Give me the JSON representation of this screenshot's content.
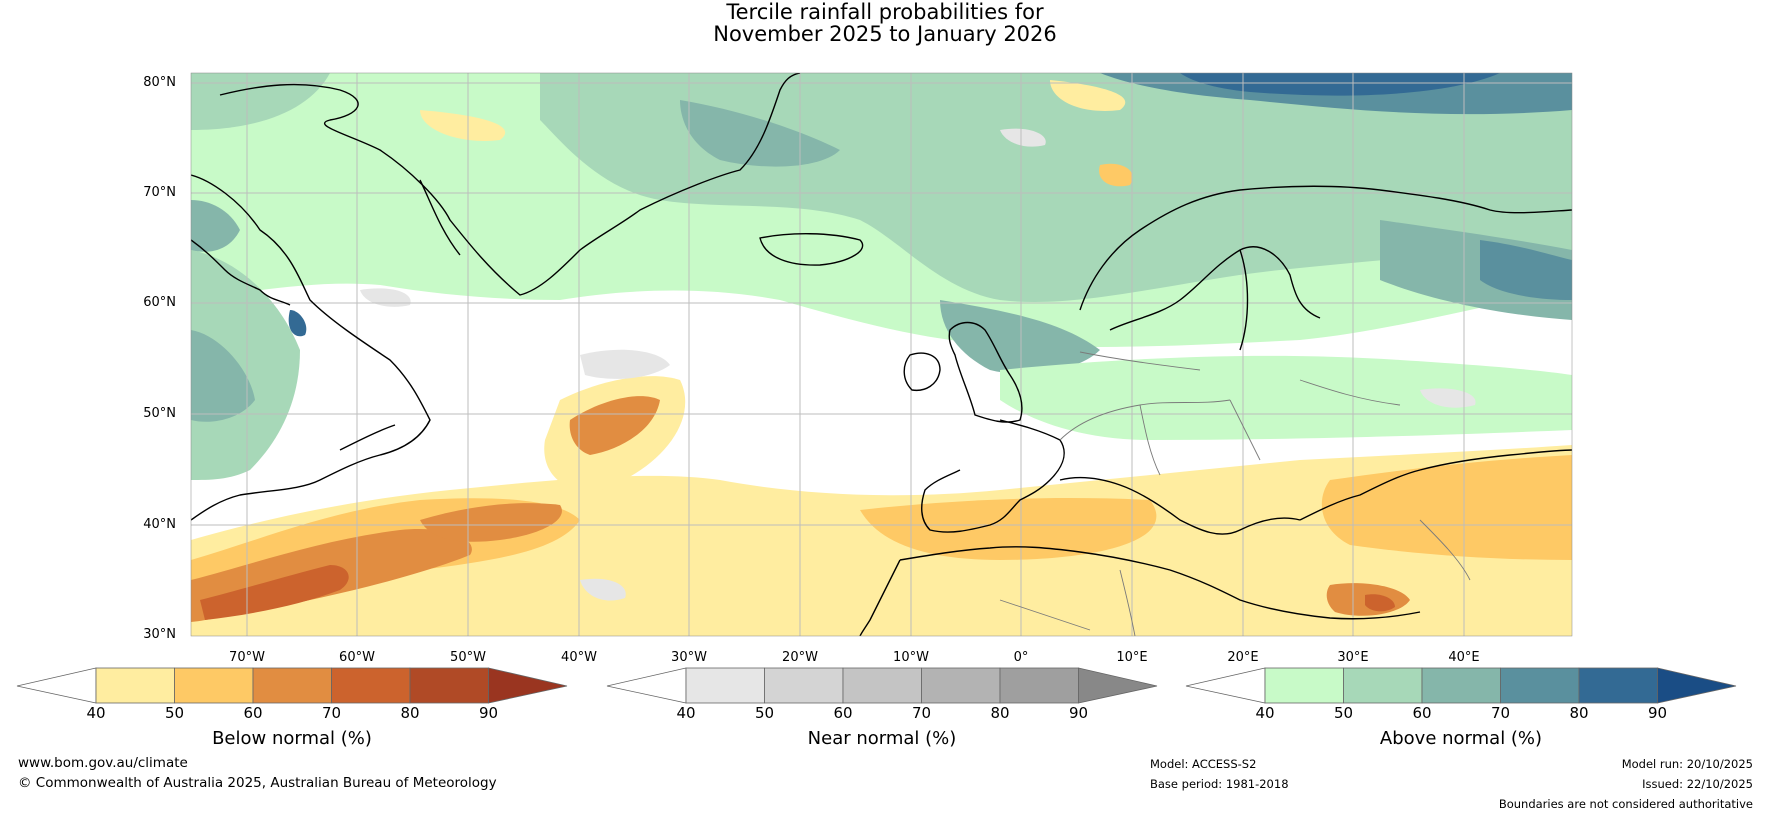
{
  "title": {
    "line1": "Tercile rainfall probabilities for",
    "line2": "November 2025 to January 2026"
  },
  "latitude_labels": [
    "80°N",
    "70°N",
    "60°N",
    "50°N",
    "40°N",
    "30°N"
  ],
  "longitude_labels": [
    "70°W",
    "60°W",
    "50°W",
    "40°W",
    "30°W",
    "20°W",
    "10°W",
    "0°",
    "10°E",
    "20°E",
    "30°E",
    "40°E"
  ],
  "colorbars": [
    {
      "label": "Below normal (%)",
      "ticks": [
        "40",
        "50",
        "60",
        "70",
        "80",
        "90"
      ],
      "colors": [
        "#ffffff",
        "#ffeda0",
        "#fec965",
        "#e18d41",
        "#cc632d",
        "#b04a26",
        "#9a3520"
      ]
    },
    {
      "label": "Near normal (%)",
      "ticks": [
        "40",
        "50",
        "60",
        "70",
        "80",
        "90"
      ],
      "colors": [
        "#ffffff",
        "#e6e6e6",
        "#d4d4d4",
        "#c4c4c4",
        "#b3b3b3",
        "#9f9f9f",
        "#888888"
      ]
    },
    {
      "label": "Above normal (%)",
      "ticks": [
        "40",
        "50",
        "60",
        "70",
        "80",
        "90"
      ],
      "colors": [
        "#ffffff",
        "#c8fac8",
        "#a7d8b8",
        "#85b6aa",
        "#5a909e",
        "#336a94",
        "#1a4d85"
      ]
    }
  ],
  "footer": {
    "website": "www.bom.gov.au/climate",
    "copyright": "© Commonwealth of Australia 2025, Australian Bureau of Meteorology",
    "model": "Model: ACCESS-S2",
    "base_period": "Base period: 1981-2018",
    "model_run": "Model run: 20/10/2025",
    "issued": "Issued: 22/10/2025",
    "disclaimer": "Boundaries are not considered authoritative"
  }
}
